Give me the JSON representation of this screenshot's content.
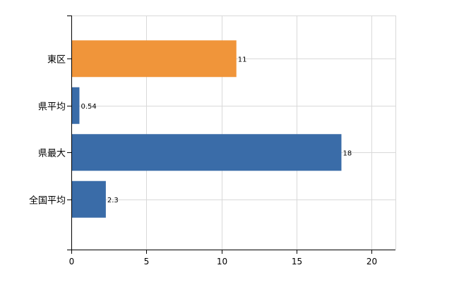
{
  "chart_data": {
    "type": "bar",
    "orientation": "horizontal",
    "categories": [
      "東区",
      "県平均",
      "県最大",
      "全国平均"
    ],
    "values": [
      11,
      0.54,
      18,
      2.3
    ],
    "data_labels": [
      "11",
      "0.54",
      "18",
      "2.3"
    ],
    "colors": [
      "#F0953A",
      "#3A6CA8",
      "#3A6CA8",
      "#3A6CA8"
    ],
    "xlim": [
      0,
      21.6
    ],
    "xticks": [
      0,
      5,
      10,
      15,
      20
    ],
    "xtick_labels": [
      "0",
      "5",
      "10",
      "15",
      "20"
    ],
    "grid": true,
    "title": "",
    "xlabel": "",
    "ylabel": ""
  }
}
